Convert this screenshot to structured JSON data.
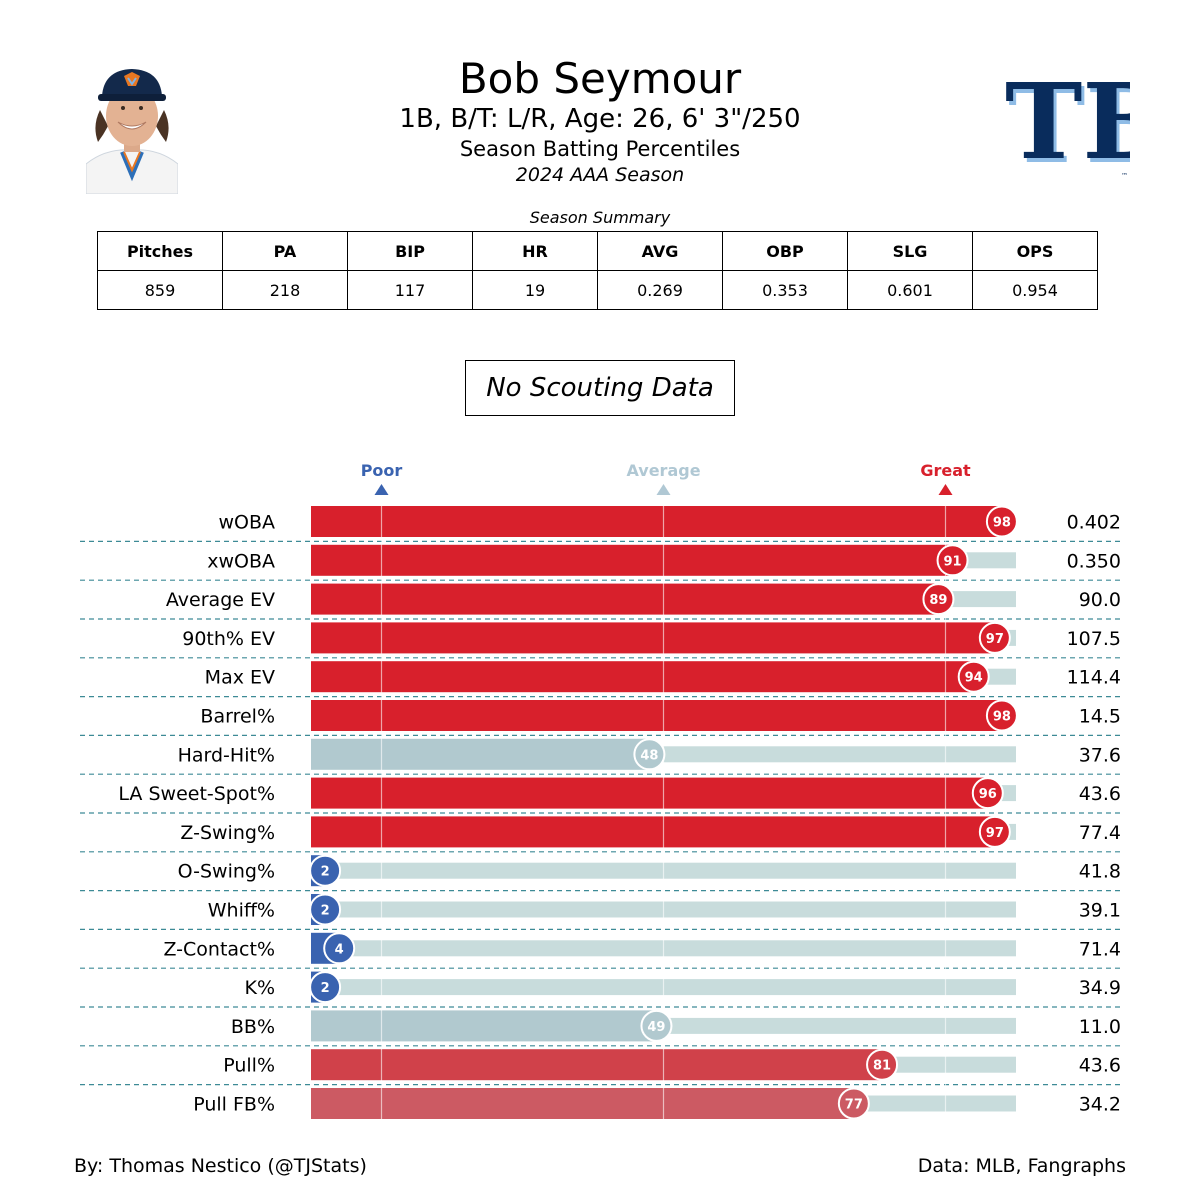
{
  "player": {
    "name": "Bob Seymour",
    "info": "1B, B/T: L/R, Age: 26, 6' 3\"/250",
    "subtitle": "Season Batting Percentiles",
    "season": "2024 AAA Season"
  },
  "team_logo": {
    "text": "TB",
    "mark": "™",
    "primary": "#092c5c",
    "secondary": "#8fbce6"
  },
  "summary": {
    "title": "Season Summary",
    "headers": [
      "Pitches",
      "PA",
      "BIP",
      "HR",
      "AVG",
      "OBP",
      "SLG",
      "OPS"
    ],
    "values": [
      "859",
      "218",
      "117",
      "19",
      "0.269",
      "0.353",
      "0.601",
      "0.954"
    ]
  },
  "scouting_note": "No Scouting Data",
  "chart_data": {
    "type": "bar",
    "orientation": "horizontal",
    "xlim": [
      0,
      100
    ],
    "reference_markers": [
      {
        "label": "Poor",
        "value": 10,
        "color": "#3a63b0"
      },
      {
        "label": "Average",
        "value": 50,
        "color": "#b0c8d4"
      },
      {
        "label": "Great",
        "value": 90,
        "color": "#d8202c"
      }
    ],
    "categories": [
      "wOBA",
      "xwOBA",
      "Average EV",
      "90th% EV",
      "Max EV",
      "Barrel%",
      "Hard-Hit%",
      "LA Sweet-Spot%",
      "Z-Swing%",
      "O-Swing%",
      "Whiff%",
      "Z-Contact%",
      "K%",
      "BB%",
      "Pull%",
      "Pull FB%"
    ],
    "percentiles": [
      98,
      91,
      89,
      97,
      94,
      98,
      48,
      96,
      97,
      2,
      2,
      4,
      2,
      49,
      81,
      77
    ],
    "stat_values": [
      "0.402",
      "0.350",
      "90.0",
      "107.5",
      "114.4",
      "14.5",
      "37.6",
      "43.6",
      "77.4",
      "41.8",
      "39.1",
      "71.4",
      "34.9",
      "11.0",
      "43.6",
      "34.2"
    ],
    "bar_colors": [
      "#d8202c",
      "#d8202c",
      "#d8202c",
      "#d8202c",
      "#d8202c",
      "#d8202c",
      "#b1c9cf",
      "#d8202c",
      "#d8202c",
      "#3a63b0",
      "#3a63b0",
      "#3a63b0",
      "#3a63b0",
      "#b1c9cf",
      "#d0414a",
      "#cc5a63"
    ],
    "track_color": "#c8dcdc",
    "divider_color": "#3d8a96"
  },
  "credits": {
    "left": "By: Thomas Nestico (@TJStats)",
    "right": "Data: MLB, Fangraphs"
  }
}
